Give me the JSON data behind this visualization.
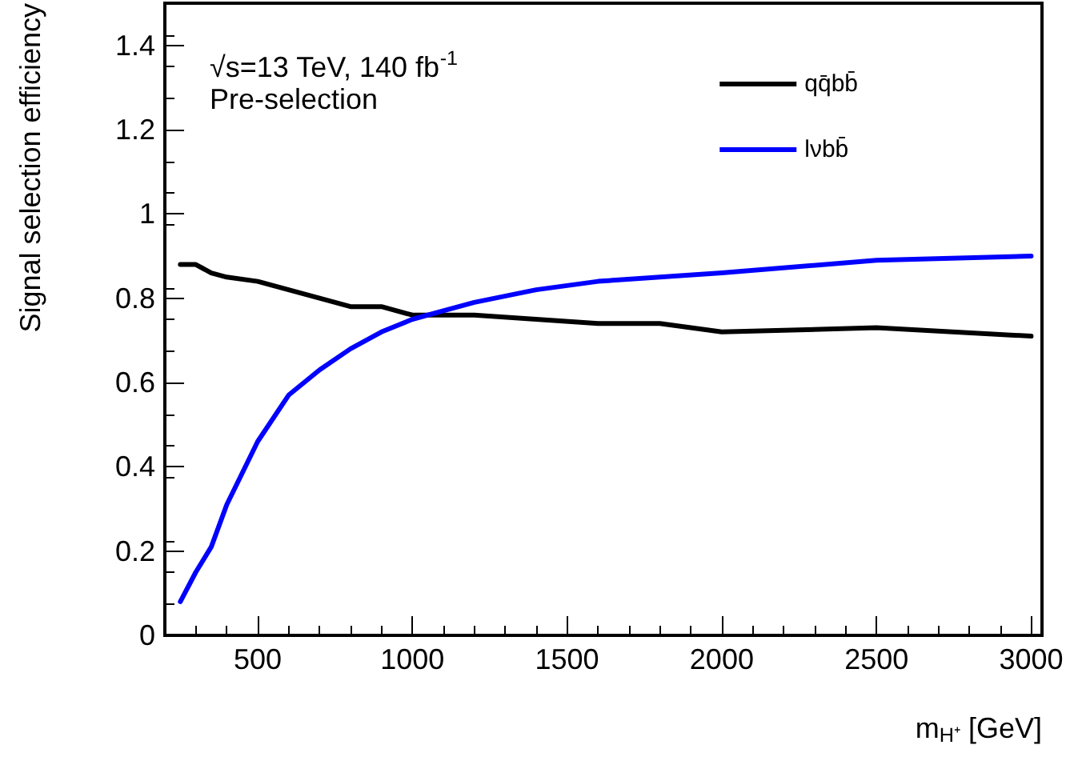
{
  "chart_data": {
    "type": "line",
    "xlabel": "m$_{H⁺}$ [GeV]",
    "ylabel": "Signal selection efficiency",
    "annotations": [
      "√s=13 TeV, 140 fb$^{-1}$",
      "Pre-selection"
    ],
    "series": [
      {
        "name": "qq̄bb̄",
        "color": "#000000",
        "x": [
          250,
          300,
          350,
          400,
          500,
          600,
          700,
          800,
          900,
          1000,
          1200,
          1400,
          1600,
          1800,
          2000,
          2500,
          3000
        ],
        "values": [
          0.88,
          0.88,
          0.86,
          0.85,
          0.84,
          0.82,
          0.8,
          0.78,
          0.78,
          0.76,
          0.76,
          0.75,
          0.74,
          0.74,
          0.72,
          0.73,
          0.71
        ]
      },
      {
        "name": "lνbb̄",
        "color": "#0000ff",
        "x": [
          250,
          300,
          350,
          400,
          500,
          600,
          700,
          800,
          900,
          1000,
          1100,
          1200,
          1400,
          1600,
          1800,
          2000,
          2500,
          3000
        ],
        "values": [
          0.08,
          0.15,
          0.21,
          0.31,
          0.46,
          0.57,
          0.63,
          0.68,
          0.72,
          0.75,
          0.77,
          0.79,
          0.82,
          0.84,
          0.85,
          0.86,
          0.89,
          0.9
        ]
      }
    ],
    "xlim": [
      200,
      3035
    ],
    "xticks": [
      500,
      1000,
      1500,
      2000,
      2500,
      3000
    ],
    "ylim": [
      0,
      1.5
    ],
    "yticks": [
      0,
      0.2,
      0.4,
      0.6,
      0.8,
      1,
      1.2,
      1.4
    ],
    "legend": "top right",
    "marker": "none",
    "line_style": "solid",
    "grid": false
  }
}
